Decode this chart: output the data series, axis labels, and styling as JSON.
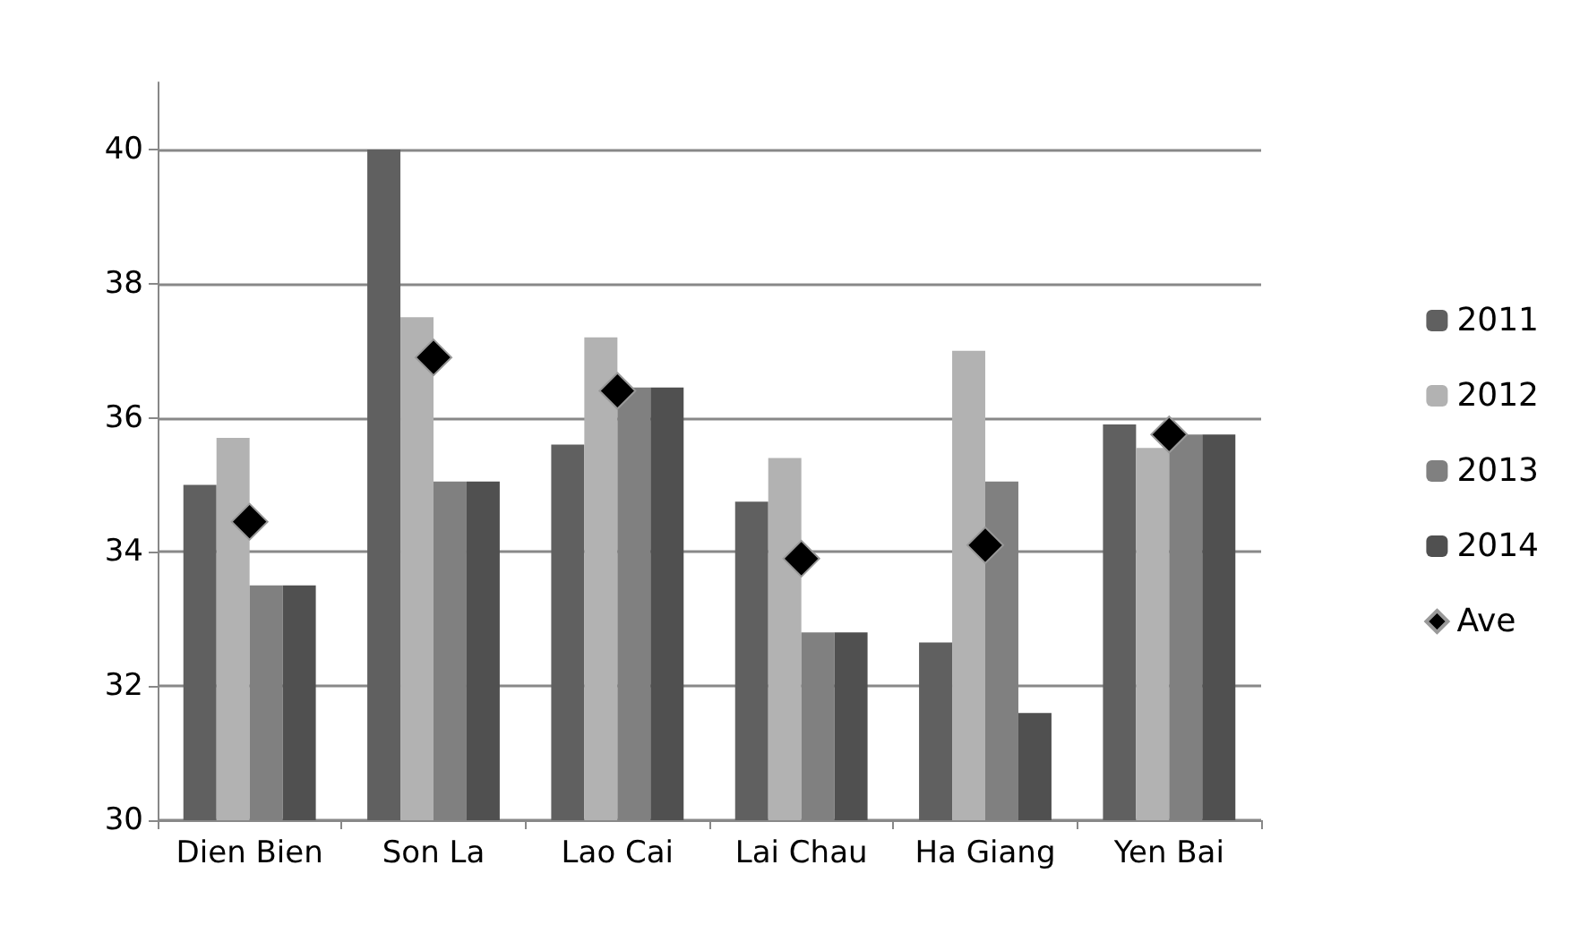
{
  "chart_data": {
    "type": "bar",
    "categories": [
      "Dien Bien",
      "Son La",
      "Lao Cai",
      "Lai Chau",
      "Ha Giang",
      "Yen Bai"
    ],
    "series": [
      {
        "name": "2011",
        "color": "#606060",
        "values": [
          35.0,
          40.0,
          35.6,
          34.75,
          32.65,
          35.9
        ]
      },
      {
        "name": "2012",
        "color": "#b2b2b2",
        "values": [
          35.7,
          37.5,
          37.2,
          35.4,
          37.0,
          35.55
        ]
      },
      {
        "name": "2013",
        "color": "#808080",
        "values": [
          33.5,
          35.05,
          36.45,
          32.8,
          35.05,
          35.75
        ]
      },
      {
        "name": "2014",
        "color": "#505050",
        "values": [
          33.5,
          35.05,
          36.45,
          32.8,
          31.6,
          35.75
        ]
      },
      {
        "name": "Ave",
        "type": "scatter",
        "marker": "diamond",
        "color": "#000000",
        "x": [
          "Dien Bien",
          "Son La",
          "Lao Cai",
          "Lai Chau",
          "Ha Giang",
          "Yen Bai"
        ],
        "values": [
          34.45,
          36.9,
          36.4,
          33.9,
          34.1,
          35.75
        ]
      }
    ],
    "ylim": [
      30,
      41
    ],
    "yticks": [
      30,
      32,
      34,
      36,
      38,
      40
    ],
    "grid": "y",
    "legend": "right"
  }
}
